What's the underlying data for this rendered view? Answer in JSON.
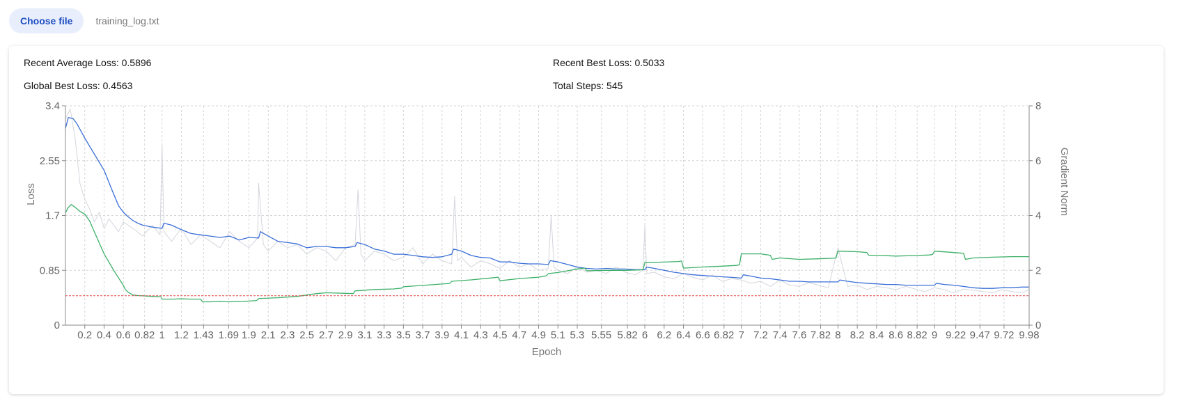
{
  "file_picker": {
    "button_label": "Choose file",
    "file_name": "training_log.txt"
  },
  "stats": {
    "recent_average": "Recent Average Loss: 0.5896",
    "recent_best": "Recent Best Loss: 0.5033",
    "global_best": "Global Best Loss: 0.4563",
    "total_steps": "Total Steps: 545"
  },
  "chart_data": {
    "type": "line",
    "title": "",
    "xlabel": "Epoch",
    "ylabel": "Loss",
    "y2label": "Gradient Norm",
    "xlim": [
      0,
      9.98
    ],
    "ylim": [
      0,
      3.4
    ],
    "y2lim": [
      0,
      8
    ],
    "x_ticks": [
      0.2,
      0.4,
      0.6,
      0.82,
      1,
      1.2,
      1.43,
      1.69,
      1.9,
      2.1,
      2.3,
      2.5,
      2.7,
      2.9,
      3.1,
      3.3,
      3.5,
      3.7,
      3.9,
      4.1,
      4.3,
      4.5,
      4.7,
      4.9,
      5.1,
      5.3,
      5.55,
      5.82,
      6,
      6.2,
      6.4,
      6.6,
      6.82,
      7,
      7.2,
      7.4,
      7.6,
      7.82,
      8,
      8.2,
      8.4,
      8.6,
      8.82,
      9,
      9.22,
      9.47,
      9.72,
      9.98
    ],
    "x_tick_labels": [
      "0.2",
      "0.4",
      "0.6",
      "0.82",
      "1",
      "1.2",
      "1.43",
      "1.69",
      "1.9",
      "2.1",
      "2.3",
      "2.5",
      "2.7",
      "2.9",
      "3.1",
      "3.3",
      "3.5",
      "3.7",
      "3.9",
      "4.1",
      "4.3",
      "4.5",
      "4.7",
      "4.9",
      "5.1",
      "5.3",
      "5.55",
      "5.82",
      "6",
      "6.2",
      "6.4",
      "6.6",
      "6.82",
      "7",
      "7.2",
      "7.4",
      "7.6",
      "7.82",
      "8",
      "8.2",
      "8.4",
      "8.6",
      "8.82",
      "9",
      "9.22",
      "9.47",
      "9.72",
      "9.98"
    ],
    "y_ticks": [
      0,
      0.85,
      1.7,
      2.55,
      3.4
    ],
    "y_tick_labels": [
      "0",
      "0.85",
      "1.7",
      "2.55",
      "3.4"
    ],
    "y2_ticks": [
      0,
      2,
      4,
      6,
      8
    ],
    "y2_tick_labels": [
      "0",
      "2",
      "4",
      "6",
      "8"
    ],
    "grid": true,
    "reference_line": {
      "axis": "left",
      "value": 0.4563,
      "color": "#e04848"
    },
    "series": [
      {
        "axis": "left",
        "color": "#d4d6dd",
        "x": [
          0,
          0.05,
          0.1,
          0.15,
          0.2,
          0.25,
          0.3,
          0.35,
          0.4,
          0.45,
          0.5,
          0.55,
          0.6,
          0.7,
          0.8,
          0.9,
          0.98,
          1.0,
          1.02,
          1.1,
          1.2,
          1.3,
          1.4,
          1.5,
          1.6,
          1.7,
          1.8,
          1.9,
          1.99,
          2.0,
          2.05,
          2.1,
          2.2,
          2.3,
          2.4,
          2.5,
          2.6,
          2.7,
          2.8,
          2.9,
          3.0,
          3.03,
          3.06,
          3.1,
          3.2,
          3.3,
          3.4,
          3.5,
          3.6,
          3.7,
          3.8,
          3.9,
          4.0,
          4.03,
          4.06,
          4.1,
          4.2,
          4.3,
          4.4,
          4.5,
          4.6,
          4.7,
          4.8,
          4.9,
          5.0,
          5.03,
          5.06,
          5.1,
          5.2,
          5.3,
          5.4,
          5.5,
          5.6,
          5.7,
          5.8,
          5.9,
          5.98,
          6.0,
          6.02,
          6.1,
          6.2,
          6.3,
          6.4,
          6.5,
          6.6,
          6.7,
          6.8,
          6.9,
          7.0,
          7.1,
          7.2,
          7.3,
          7.4,
          7.5,
          7.6,
          7.7,
          7.8,
          7.9,
          8.0,
          8.1,
          8.2,
          8.3,
          8.4,
          8.5,
          8.6,
          8.7,
          8.8,
          8.9,
          9.0,
          9.1,
          9.2,
          9.3,
          9.4,
          9.5,
          9.6,
          9.7,
          9.8,
          9.9,
          9.98
        ],
        "values": [
          3.2,
          3.35,
          2.9,
          2.2,
          1.95,
          1.8,
          1.6,
          1.75,
          1.5,
          1.65,
          1.55,
          1.45,
          1.6,
          1.5,
          1.38,
          1.55,
          1.4,
          2.8,
          1.45,
          1.3,
          1.5,
          1.25,
          1.4,
          1.3,
          1.2,
          1.45,
          1.3,
          1.2,
          1.35,
          2.2,
          1.25,
          1.15,
          1.3,
          1.2,
          1.25,
          1.1,
          1.2,
          1.15,
          1.0,
          1.2,
          1.25,
          2.1,
          1.1,
          1.0,
          1.15,
          1.1,
          1.0,
          1.05,
          1.2,
          0.95,
          1.1,
          1.0,
          0.95,
          2.0,
          1.0,
          1.05,
          0.9,
          1.0,
          0.95,
          0.88,
          1.0,
          0.9,
          0.95,
          0.85,
          0.88,
          1.7,
          0.9,
          0.85,
          0.8,
          0.9,
          0.82,
          0.85,
          0.8,
          0.9,
          0.82,
          0.78,
          0.85,
          1.55,
          0.8,
          0.82,
          0.75,
          0.72,
          0.8,
          0.74,
          0.7,
          0.78,
          0.68,
          0.72,
          0.7,
          0.65,
          0.68,
          0.6,
          0.7,
          0.62,
          0.6,
          0.66,
          0.62,
          0.58,
          1.2,
          0.6,
          0.62,
          0.55,
          0.6,
          0.58,
          0.55,
          0.6,
          0.56,
          0.52,
          0.58,
          0.55,
          0.5,
          0.56,
          0.54,
          0.52,
          0.5,
          0.55,
          0.52,
          0.5,
          0.55
        ]
      },
      {
        "axis": "left",
        "color": "#3a6fd8",
        "x": [
          0,
          0.03,
          0.08,
          0.12,
          0.2,
          0.3,
          0.4,
          0.48,
          0.55,
          0.6,
          0.65,
          0.7,
          0.75,
          0.8,
          0.9,
          1.0,
          1.02,
          1.1,
          1.2,
          1.3,
          1.4,
          1.5,
          1.6,
          1.7,
          1.8,
          1.9,
          2.0,
          2.02,
          2.1,
          2.2,
          2.3,
          2.4,
          2.5,
          2.6,
          2.7,
          2.8,
          2.9,
          3.0,
          3.02,
          3.1,
          3.2,
          3.3,
          3.4,
          3.5,
          3.6,
          3.7,
          3.8,
          3.9,
          4.0,
          4.02,
          4.1,
          4.2,
          4.3,
          4.4,
          4.5,
          4.6,
          4.7,
          4.8,
          4.9,
          5.0,
          5.02,
          5.1,
          5.2,
          5.3,
          5.4,
          5.5,
          5.6,
          5.7,
          5.8,
          5.9,
          6.0,
          6.02,
          6.1,
          6.2,
          6.3,
          6.4,
          6.5,
          6.6,
          6.7,
          6.8,
          6.9,
          7.0,
          7.02,
          7.1,
          7.2,
          7.3,
          7.4,
          7.5,
          7.6,
          7.7,
          7.8,
          7.9,
          8.0,
          8.02,
          8.1,
          8.2,
          8.3,
          8.4,
          8.5,
          8.6,
          8.7,
          8.8,
          8.9,
          9.0,
          9.02,
          9.1,
          9.2,
          9.3,
          9.4,
          9.5,
          9.6,
          9.7,
          9.8,
          9.9,
          9.98
        ],
        "values": [
          3.05,
          3.22,
          3.2,
          3.12,
          2.9,
          2.65,
          2.4,
          2.1,
          1.85,
          1.75,
          1.68,
          1.62,
          1.58,
          1.55,
          1.52,
          1.5,
          1.58,
          1.55,
          1.48,
          1.42,
          1.4,
          1.38,
          1.36,
          1.38,
          1.32,
          1.36,
          1.35,
          1.45,
          1.38,
          1.3,
          1.28,
          1.26,
          1.2,
          1.22,
          1.22,
          1.2,
          1.2,
          1.22,
          1.28,
          1.25,
          1.18,
          1.15,
          1.1,
          1.1,
          1.08,
          1.06,
          1.05,
          1.06,
          1.1,
          1.18,
          1.15,
          1.08,
          1.05,
          1.04,
          0.98,
          0.98,
          0.96,
          0.95,
          0.95,
          0.94,
          1.0,
          0.98,
          0.94,
          0.9,
          0.88,
          0.87,
          0.88,
          0.87,
          0.87,
          0.86,
          0.86,
          0.9,
          0.88,
          0.85,
          0.82,
          0.8,
          0.78,
          0.77,
          0.76,
          0.75,
          0.74,
          0.73,
          0.78,
          0.76,
          0.73,
          0.72,
          0.7,
          0.68,
          0.68,
          0.67,
          0.67,
          0.67,
          0.67,
          0.7,
          0.68,
          0.66,
          0.65,
          0.64,
          0.63,
          0.63,
          0.62,
          0.62,
          0.62,
          0.62,
          0.65,
          0.63,
          0.62,
          0.6,
          0.58,
          0.57,
          0.57,
          0.58,
          0.58,
          0.59,
          0.59
        ]
      },
      {
        "axis": "right",
        "color": "#3cb068",
        "x": [
          0,
          0.03,
          0.06,
          0.1,
          0.15,
          0.2,
          0.25,
          0.3,
          0.35,
          0.4,
          0.5,
          0.6,
          0.62,
          0.65,
          0.7,
          0.75,
          0.8,
          0.85,
          0.9,
          0.95,
          0.99,
          1.0,
          1.1,
          1.2,
          1.3,
          1.4,
          1.42,
          1.5,
          1.6,
          1.7,
          1.8,
          1.9,
          1.98,
          2.0,
          2.2,
          2.4,
          2.5,
          2.6,
          2.7,
          2.8,
          2.9,
          2.98,
          3.0,
          3.2,
          3.4,
          3.48,
          3.5,
          3.7,
          3.9,
          3.98,
          4.0,
          4.2,
          4.4,
          4.48,
          4.5,
          4.7,
          4.9,
          4.98,
          5.0,
          5.1,
          5.2,
          5.3,
          5.38,
          5.4,
          5.6,
          5.8,
          5.98,
          6.0,
          6.2,
          6.35,
          6.38,
          6.4,
          6.6,
          6.8,
          6.95,
          6.98,
          7.0,
          7.2,
          7.3,
          7.32,
          7.4,
          7.6,
          7.8,
          7.95,
          7.98,
          8.0,
          8.2,
          8.3,
          8.32,
          8.4,
          8.6,
          8.8,
          8.95,
          8.98,
          9.0,
          9.2,
          9.3,
          9.32,
          9.4,
          9.6,
          9.8,
          9.98
        ],
        "values": [
          4.1,
          4.3,
          4.4,
          4.3,
          4.15,
          4.05,
          3.8,
          3.4,
          3.0,
          2.6,
          2.0,
          1.45,
          1.3,
          1.2,
          1.1,
          1.08,
          1.07,
          1.06,
          1.05,
          1.04,
          1.03,
          0.95,
          0.95,
          0.96,
          0.95,
          0.95,
          0.85,
          0.85,
          0.86,
          0.85,
          0.86,
          0.88,
          0.9,
          0.97,
          1.0,
          1.05,
          1.1,
          1.15,
          1.18,
          1.17,
          1.16,
          1.15,
          1.25,
          1.3,
          1.32,
          1.35,
          1.4,
          1.45,
          1.5,
          1.52,
          1.6,
          1.65,
          1.72,
          1.75,
          1.62,
          1.7,
          1.75,
          1.8,
          1.88,
          1.92,
          1.98,
          2.05,
          2.08,
          1.98,
          2.0,
          2.0,
          2.02,
          2.28,
          2.3,
          2.32,
          2.34,
          2.08,
          2.12,
          2.15,
          2.18,
          2.2,
          2.6,
          2.6,
          2.55,
          2.4,
          2.45,
          2.4,
          2.42,
          2.44,
          2.45,
          2.7,
          2.68,
          2.65,
          2.55,
          2.55,
          2.52,
          2.54,
          2.56,
          2.58,
          2.7,
          2.65,
          2.62,
          2.4,
          2.45,
          2.48,
          2.5,
          2.5
        ]
      }
    ]
  }
}
